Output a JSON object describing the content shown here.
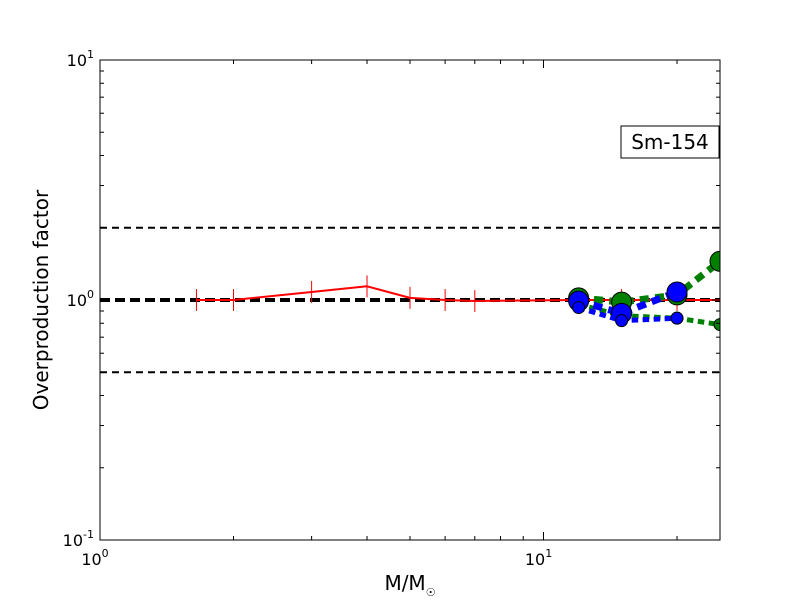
{
  "chart_data": {
    "type": "line",
    "xscale": "log",
    "yscale": "log",
    "xlim": [
      1,
      25
    ],
    "ylim": [
      0.1,
      10
    ],
    "xlabel": "M/M",
    "xlabel_symbol": "☉",
    "ylabel": "Overproduction factor",
    "x_ticks": [
      {
        "base": "10",
        "exp": "0",
        "value": 1
      },
      {
        "base": "10",
        "exp": "1",
        "value": 10
      }
    ],
    "y_ticks": [
      {
        "base": "10",
        "exp": "-1",
        "value": 0.1
      },
      {
        "base": "10",
        "exp": "0",
        "value": 1
      },
      {
        "base": "10",
        "exp": "1",
        "value": 10
      }
    ],
    "annotation": "Sm-154",
    "grid": false,
    "reference_lines": [
      {
        "y": 2.0,
        "style": "dashed",
        "color": "#000000",
        "width": 2
      },
      {
        "y": 1.0,
        "style": "dashed",
        "color": "#000000",
        "width": 4
      },
      {
        "y": 0.5,
        "style": "dashed",
        "color": "#000000",
        "width": 2
      }
    ],
    "series": [
      {
        "color": "#ff0000",
        "style": "solid",
        "width": 2,
        "marker": "vline",
        "x": [
          1.65,
          2.0,
          3.0,
          4.0,
          5.0,
          6.0,
          7.0,
          12.0,
          15.0,
          20.0,
          25.0
        ],
        "y": [
          1.0,
          1.0,
          1.08,
          1.14,
          1.02,
          1.0,
          0.99,
          1.0,
          1.0,
          1.0,
          1.0
        ]
      },
      {
        "color": "#008000",
        "style": "dotted",
        "width": 7,
        "marker": "circle",
        "marker_size": 10,
        "x": [
          12.0,
          15.0,
          20.0,
          25.0
        ],
        "y": [
          1.02,
          0.98,
          1.05,
          1.45
        ]
      },
      {
        "color": "#008000",
        "style": "dotted",
        "width": 5,
        "marker": "circle",
        "marker_size": 6,
        "x": [
          12.0,
          15.0,
          20.0,
          25.0
        ],
        "y": [
          0.96,
          0.86,
          0.84,
          0.79
        ]
      },
      {
        "color": "#0000ff",
        "style": "dotted",
        "width": 7,
        "marker": "circle",
        "marker_size": 10,
        "x": [
          12.0,
          15.0,
          20.0
        ],
        "y": [
          0.99,
          0.88,
          1.08
        ]
      },
      {
        "color": "#0000ff",
        "style": "dotted",
        "width": 5,
        "marker": "circle",
        "marker_size": 6,
        "x": [
          12.0,
          15.0,
          20.0
        ],
        "y": [
          0.93,
          0.82,
          0.84
        ]
      }
    ]
  }
}
